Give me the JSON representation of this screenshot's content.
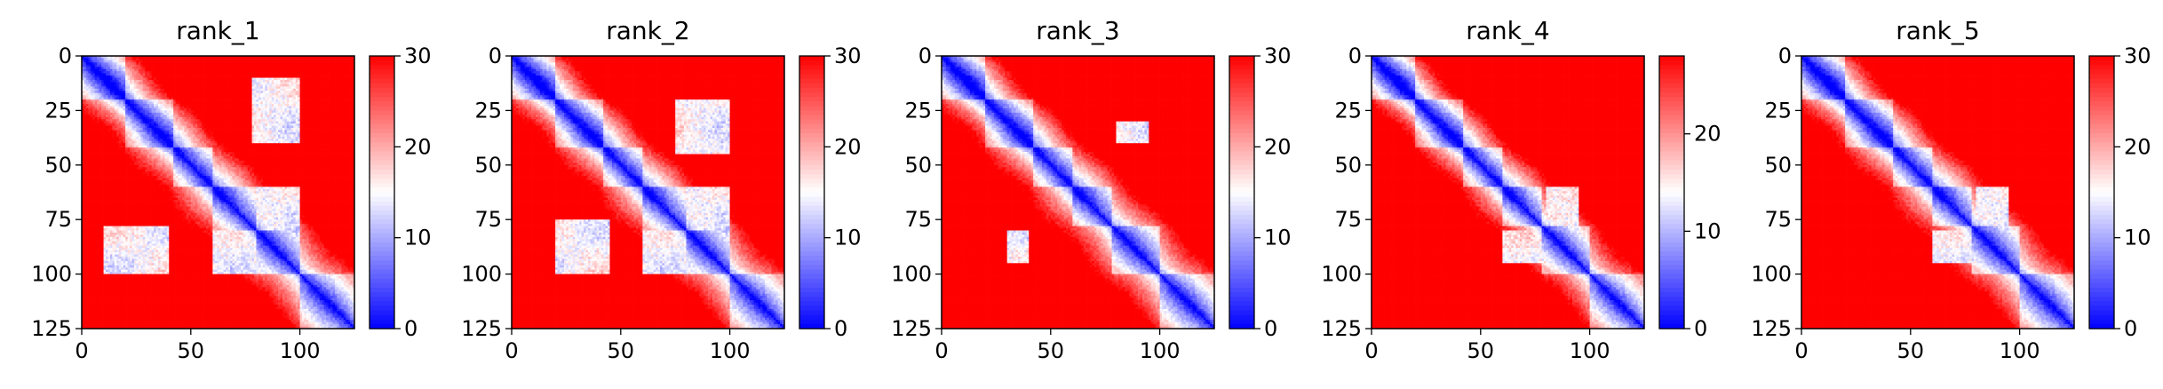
{
  "chart_data": [
    {
      "type": "heatmap",
      "title": "rank_1",
      "x_ticks": [
        "0",
        "50",
        "100"
      ],
      "y_ticks": [
        "0",
        "25",
        "50",
        "75",
        "100",
        "125"
      ],
      "colorbar_ticks": [
        "0",
        "10",
        "20",
        "30"
      ],
      "xlim": [
        0,
        125
      ],
      "ylim": [
        125,
        0
      ],
      "clim": [
        0,
        30
      ],
      "colormap": [
        "#0000ff",
        "#ffffff",
        "#ff0000"
      ],
      "blocks": [
        [
          0,
          20
        ],
        [
          20,
          42
        ],
        [
          42,
          60
        ],
        [
          60,
          80
        ],
        [
          80,
          100
        ],
        [
          100,
          125
        ]
      ],
      "near_regions": [
        [
          78,
          100,
          10,
          40
        ],
        [
          60,
          100,
          80,
          100
        ]
      ]
    },
    {
      "type": "heatmap",
      "title": "rank_2",
      "x_ticks": [
        "0",
        "50",
        "100"
      ],
      "y_ticks": [
        "0",
        "25",
        "50",
        "75",
        "100",
        "125"
      ],
      "colorbar_ticks": [
        "0",
        "10",
        "20",
        "30"
      ],
      "xlim": [
        0,
        125
      ],
      "ylim": [
        125,
        0
      ],
      "clim": [
        0,
        30
      ],
      "colormap": [
        "#0000ff",
        "#ffffff",
        "#ff0000"
      ],
      "blocks": [
        [
          0,
          20
        ],
        [
          20,
          42
        ],
        [
          42,
          60
        ],
        [
          60,
          80
        ],
        [
          80,
          100
        ],
        [
          100,
          125
        ]
      ],
      "near_regions": [
        [
          75,
          100,
          20,
          45
        ],
        [
          60,
          100,
          80,
          100
        ]
      ]
    },
    {
      "type": "heatmap",
      "title": "rank_3",
      "x_ticks": [
        "0",
        "50",
        "100"
      ],
      "y_ticks": [
        "0",
        "25",
        "50",
        "75",
        "100",
        "125"
      ],
      "colorbar_ticks": [
        "0",
        "10",
        "20",
        "30"
      ],
      "xlim": [
        0,
        125
      ],
      "ylim": [
        125,
        0
      ],
      "clim": [
        0,
        30
      ],
      "colormap": [
        "#0000ff",
        "#ffffff",
        "#ff0000"
      ],
      "blocks": [
        [
          0,
          20
        ],
        [
          20,
          42
        ],
        [
          42,
          60
        ],
        [
          60,
          78
        ],
        [
          78,
          100
        ],
        [
          100,
          125
        ]
      ],
      "near_regions": [
        [
          80,
          95,
          30,
          40
        ]
      ]
    },
    {
      "type": "heatmap",
      "title": "rank_4",
      "x_ticks": [
        "0",
        "50",
        "100"
      ],
      "y_ticks": [
        "0",
        "25",
        "50",
        "75",
        "100",
        "125"
      ],
      "colorbar_ticks": [
        "0",
        "10",
        "20"
      ],
      "xlim": [
        0,
        125
      ],
      "ylim": [
        125,
        0
      ],
      "clim": [
        0,
        28
      ],
      "colormap": [
        "#0000ff",
        "#ffffff",
        "#ff0000"
      ],
      "blocks": [
        [
          0,
          20
        ],
        [
          20,
          42
        ],
        [
          42,
          60
        ],
        [
          60,
          78
        ],
        [
          78,
          100
        ],
        [
          100,
          125
        ]
      ],
      "near_regions": [
        [
          60,
          80,
          80,
          95
        ]
      ]
    },
    {
      "type": "heatmap",
      "title": "rank_5",
      "x_ticks": [
        "0",
        "50",
        "100"
      ],
      "y_ticks": [
        "0",
        "25",
        "50",
        "75",
        "100",
        "125"
      ],
      "colorbar_ticks": [
        "0",
        "10",
        "20",
        "30"
      ],
      "xlim": [
        0,
        125
      ],
      "ylim": [
        125,
        0
      ],
      "clim": [
        0,
        30
      ],
      "colormap": [
        "#0000ff",
        "#ffffff",
        "#ff0000"
      ],
      "blocks": [
        [
          0,
          20
        ],
        [
          20,
          42
        ],
        [
          42,
          60
        ],
        [
          60,
          78
        ],
        [
          78,
          100
        ],
        [
          100,
          125
        ]
      ],
      "near_regions": [
        [
          60,
          80,
          80,
          95
        ]
      ]
    }
  ]
}
